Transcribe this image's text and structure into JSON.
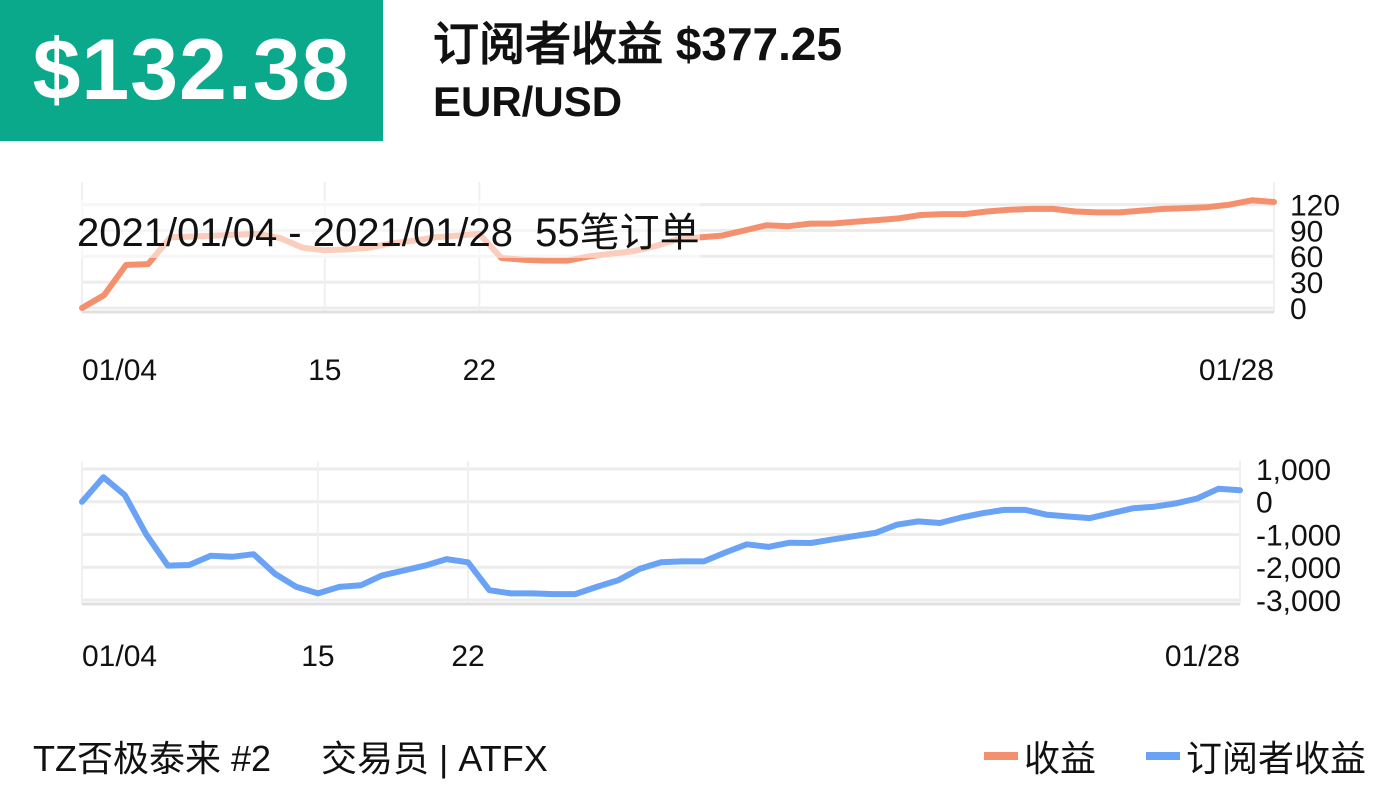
{
  "header": {
    "value_badge": "$132.38",
    "title": "订阅者收益 $377.25",
    "subtitle": "EUR/USD"
  },
  "overlay": {
    "date_range": "2021/01/04 - 2021/01/28",
    "orders": "55笔订单"
  },
  "colors": {
    "badge": "#0aa98c",
    "profit": "#f4906e",
    "subscriber_profit": "#6aa3f5"
  },
  "chart_data": [
    {
      "type": "line",
      "series": [
        {
          "name": "收益",
          "values": [
            0,
            15,
            50,
            51,
            82,
            83,
            84,
            85,
            86,
            81,
            70,
            67,
            68,
            70,
            75,
            78,
            82,
            84,
            86,
            58,
            56,
            55,
            55,
            60,
            63,
            66,
            72,
            80,
            82,
            84,
            90,
            96,
            95,
            98,
            98,
            100,
            102,
            104,
            108,
            109,
            109,
            112,
            114,
            115,
            115,
            112,
            111,
            111,
            113,
            115,
            116,
            117,
            120,
            125,
            123
          ]
        }
      ],
      "x_tick_labels": [
        "01/04",
        "15",
        "22",
        "01/28"
      ],
      "y_tick_labels": [
        "0",
        "30",
        "60",
        "90",
        "120"
      ],
      "ylim": [
        0,
        130
      ],
      "grid": true
    },
    {
      "type": "line",
      "series": [
        {
          "name": "订阅者收益",
          "values": [
            0,
            750,
            200,
            -1000,
            -1950,
            -1930,
            -1650,
            -1680,
            -1600,
            -2200,
            -2600,
            -2800,
            -2600,
            -2550,
            -2250,
            -2100,
            -1950,
            -1750,
            -1850,
            -2700,
            -2800,
            -2800,
            -2820,
            -2820,
            -2600,
            -2400,
            -2050,
            -1850,
            -1820,
            -1820,
            -1550,
            -1300,
            -1380,
            -1250,
            -1260,
            -1150,
            -1050,
            -950,
            -700,
            -600,
            -650,
            -480,
            -350,
            -250,
            -250,
            -400,
            -450,
            -500,
            -350,
            -200,
            -150,
            -50,
            100,
            400,
            350
          ]
        }
      ],
      "x_tick_labels": [
        "01/04",
        "15",
        "22",
        "01/28"
      ],
      "y_tick_labels": [
        "1,000",
        "0",
        "-1,000",
        "-2,000",
        "-3,000"
      ],
      "ylim": [
        -3000,
        1000
      ],
      "grid": true
    }
  ],
  "footer": {
    "trader": "TZ否极泰来 #2",
    "role": "交易员 | ATFX"
  },
  "legend": {
    "items": [
      {
        "label": "收益",
        "color": "#f4906e"
      },
      {
        "label": "订阅者收益",
        "color": "#6aa3f5"
      }
    ]
  }
}
